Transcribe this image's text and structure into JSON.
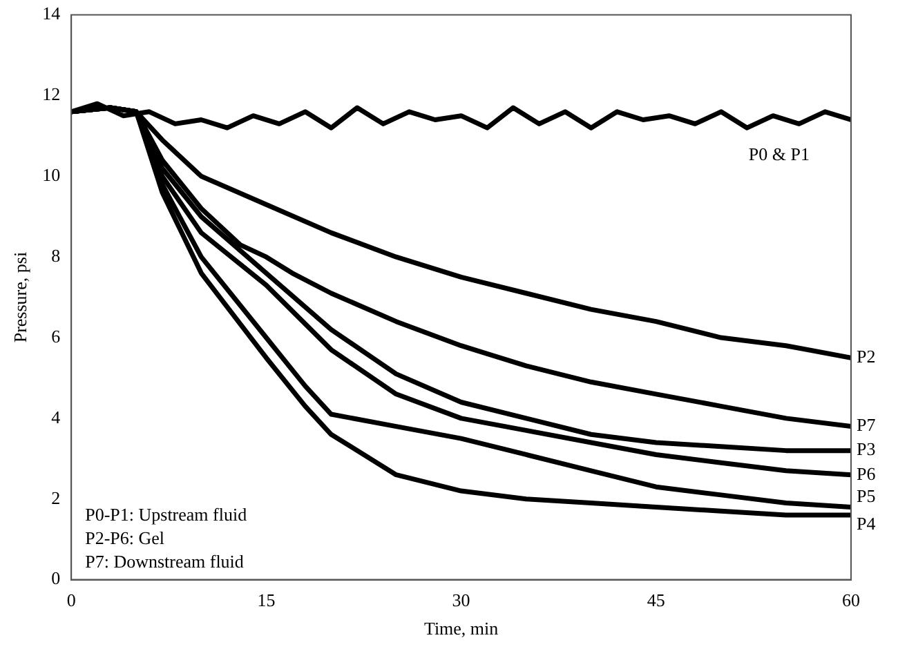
{
  "chart_data": {
    "type": "line",
    "xlabel": "Time, min",
    "ylabel": "Pressure, psi",
    "xlim": [
      0,
      60
    ],
    "xticks": [
      0,
      15,
      30,
      45,
      60
    ],
    "ylim": [
      0,
      14
    ],
    "yticks": [
      0,
      2,
      4,
      6,
      8,
      10,
      12,
      14
    ],
    "grid": false,
    "legend": false,
    "marker": "none",
    "line_style": "solid",
    "annotations": [
      "P0-P1: Upstream fluid",
      "P2-P6: Gel",
      "P7: Downstream fluid"
    ],
    "series": [
      {
        "name": "P0 & P1",
        "color": "#000000",
        "x": [
          0,
          2,
          4,
          6,
          8,
          10,
          12,
          14,
          16,
          18,
          20,
          22,
          24,
          26,
          28,
          30,
          32,
          34,
          36,
          38,
          40,
          42,
          44,
          46,
          48,
          50,
          52,
          54,
          56,
          58,
          60
        ],
        "values": [
          11.6,
          11.8,
          11.5,
          11.6,
          11.3,
          11.4,
          11.2,
          11.5,
          11.3,
          11.6,
          11.2,
          11.7,
          11.3,
          11.6,
          11.4,
          11.5,
          11.2,
          11.7,
          11.3,
          11.6,
          11.2,
          11.6,
          11.4,
          11.5,
          11.3,
          11.6,
          11.2,
          11.5,
          11.3,
          11.6,
          11.4
        ]
      },
      {
        "name": "P2",
        "color": "#000000",
        "x": [
          0,
          3,
          5,
          7,
          10,
          15,
          20,
          25,
          30,
          35,
          40,
          45,
          50,
          55,
          60
        ],
        "values": [
          11.6,
          11.7,
          11.6,
          10.9,
          10.0,
          9.3,
          8.6,
          8.0,
          7.5,
          7.1,
          6.7,
          6.4,
          6.0,
          5.8,
          5.5
        ]
      },
      {
        "name": "P7",
        "color": "#000000",
        "x": [
          0,
          3,
          5,
          7,
          10,
          13,
          15,
          17,
          20,
          25,
          30,
          35,
          40,
          45,
          50,
          55,
          60
        ],
        "values": [
          11.6,
          11.7,
          11.6,
          10.4,
          9.2,
          8.3,
          8.0,
          7.6,
          7.1,
          6.4,
          5.8,
          5.3,
          4.9,
          4.6,
          4.3,
          4.0,
          3.8
        ]
      },
      {
        "name": "P3",
        "color": "#000000",
        "x": [
          0,
          3,
          5,
          7,
          10,
          15,
          20,
          25,
          30,
          35,
          40,
          45,
          50,
          55,
          60
        ],
        "values": [
          11.6,
          11.7,
          11.6,
          10.2,
          9.0,
          7.6,
          6.2,
          5.1,
          4.4,
          4.0,
          3.6,
          3.4,
          3.3,
          3.2,
          3.2
        ]
      },
      {
        "name": "P6",
        "color": "#000000",
        "x": [
          0,
          3,
          5,
          7,
          10,
          15,
          20,
          25,
          30,
          35,
          40,
          45,
          50,
          55,
          60
        ],
        "values": [
          11.6,
          11.7,
          11.6,
          10.0,
          8.6,
          7.3,
          5.7,
          4.6,
          4.0,
          3.7,
          3.4,
          3.1,
          2.9,
          2.7,
          2.6
        ]
      },
      {
        "name": "P5",
        "color": "#000000",
        "x": [
          0,
          3,
          5,
          7,
          10,
          15,
          18,
          20,
          25,
          30,
          35,
          40,
          45,
          50,
          55,
          60
        ],
        "values": [
          11.6,
          11.7,
          11.6,
          9.8,
          8.0,
          6.0,
          4.8,
          4.1,
          3.8,
          3.5,
          3.1,
          2.7,
          2.3,
          2.1,
          1.9,
          1.8
        ]
      },
      {
        "name": "P4",
        "color": "#000000",
        "x": [
          0,
          3,
          5,
          7,
          10,
          15,
          18,
          20,
          25,
          30,
          35,
          40,
          45,
          50,
          55,
          60
        ],
        "values": [
          11.6,
          11.7,
          11.6,
          9.6,
          7.6,
          5.5,
          4.3,
          3.6,
          2.6,
          2.2,
          2.0,
          1.9,
          1.8,
          1.7,
          1.6,
          1.6
        ]
      }
    ]
  }
}
